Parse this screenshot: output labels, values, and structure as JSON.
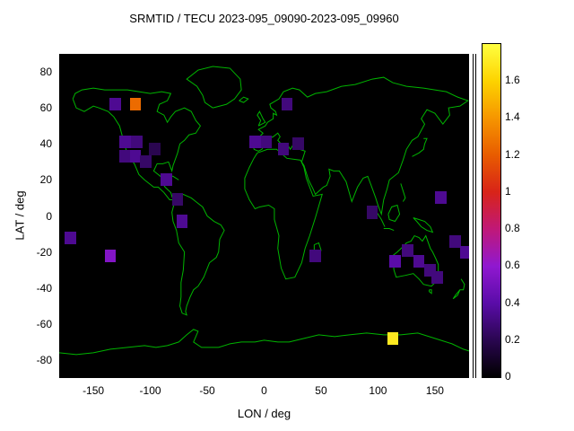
{
  "title": "SRMTID / TECU 2023-095_09090-2023-095_09960",
  "chart_data": {
    "type": "heatmap",
    "title": "SRMTID / TECU 2023-095_09090-2023-095_09960",
    "xlabel": "LON / deg",
    "ylabel": "LAT / deg",
    "xlim": [
      -180,
      180
    ],
    "ylim": [
      -90,
      90
    ],
    "x_ticks": [
      -150,
      -100,
      -50,
      0,
      50,
      100,
      150
    ],
    "y_ticks": [
      80,
      60,
      40,
      20,
      0,
      -20,
      -40,
      -60,
      -80
    ],
    "grid": false,
    "background_color": "#000000",
    "coastline_color": "#00b400",
    "colorbar": {
      "min": 0,
      "max": 1.8,
      "ticks": [
        0,
        0.2,
        0.4,
        0.6,
        0.8,
        1,
        1.2,
        1.4,
        1.6
      ],
      "position": "right"
    },
    "colormap_stops": [
      {
        "v": 0.0,
        "color": "#000000"
      },
      {
        "v": 0.2,
        "color": "#2a0650"
      },
      {
        "v": 0.4,
        "color": "#5a0ca8"
      },
      {
        "v": 0.6,
        "color": "#9018d0"
      },
      {
        "v": 0.8,
        "color": "#c01878"
      },
      {
        "v": 1.0,
        "color": "#d82418"
      },
      {
        "v": 1.2,
        "color": "#e85c00"
      },
      {
        "v": 1.4,
        "color": "#f69600"
      },
      {
        "v": 1.6,
        "color": "#fdd300"
      },
      {
        "v": 1.8,
        "color": "#ffff40"
      }
    ],
    "cell_size_deg": {
      "lon": 10,
      "lat": 7
    },
    "cells": [
      {
        "lon": -170,
        "lat": -12,
        "value": 0.35
      },
      {
        "lon": -135,
        "lat": -22,
        "value": 0.55
      },
      {
        "lon": -131,
        "lat": 62,
        "value": 0.35
      },
      {
        "lon": -113,
        "lat": 62,
        "value": 1.25
      },
      {
        "lon": -122,
        "lat": 41,
        "value": 0.35
      },
      {
        "lon": -112,
        "lat": 41,
        "value": 0.3
      },
      {
        "lon": -122,
        "lat": 33,
        "value": 0.3
      },
      {
        "lon": -113,
        "lat": 33,
        "value": 0.35
      },
      {
        "lon": -104,
        "lat": 30,
        "value": 0.25
      },
      {
        "lon": -96,
        "lat": 37,
        "value": 0.2
      },
      {
        "lon": -86,
        "lat": 20,
        "value": 0.35
      },
      {
        "lon": -76,
        "lat": 9,
        "value": 0.25
      },
      {
        "lon": -72,
        "lat": -3,
        "value": 0.35
      },
      {
        "lon": -8,
        "lat": 41,
        "value": 0.35
      },
      {
        "lon": 2,
        "lat": 41,
        "value": 0.3
      },
      {
        "lon": 17,
        "lat": 37,
        "value": 0.3
      },
      {
        "lon": 30,
        "lat": 40,
        "value": 0.25
      },
      {
        "lon": 20,
        "lat": 62,
        "value": 0.3
      },
      {
        "lon": 45,
        "lat": -22,
        "value": 0.3
      },
      {
        "lon": 95,
        "lat": 2,
        "value": 0.25
      },
      {
        "lon": 115,
        "lat": -25,
        "value": 0.4
      },
      {
        "lon": 126,
        "lat": -19,
        "value": 0.3
      },
      {
        "lon": 136,
        "lat": -25,
        "value": 0.35
      },
      {
        "lon": 146,
        "lat": -30,
        "value": 0.3
      },
      {
        "lon": 152,
        "lat": -34,
        "value": 0.3
      },
      {
        "lon": 155,
        "lat": 10,
        "value": 0.35
      },
      {
        "lon": 168,
        "lat": -14,
        "value": 0.3
      },
      {
        "lon": 177,
        "lat": -20,
        "value": 0.35
      },
      {
        "lon": 113,
        "lat": -68,
        "value": 1.7
      }
    ]
  }
}
